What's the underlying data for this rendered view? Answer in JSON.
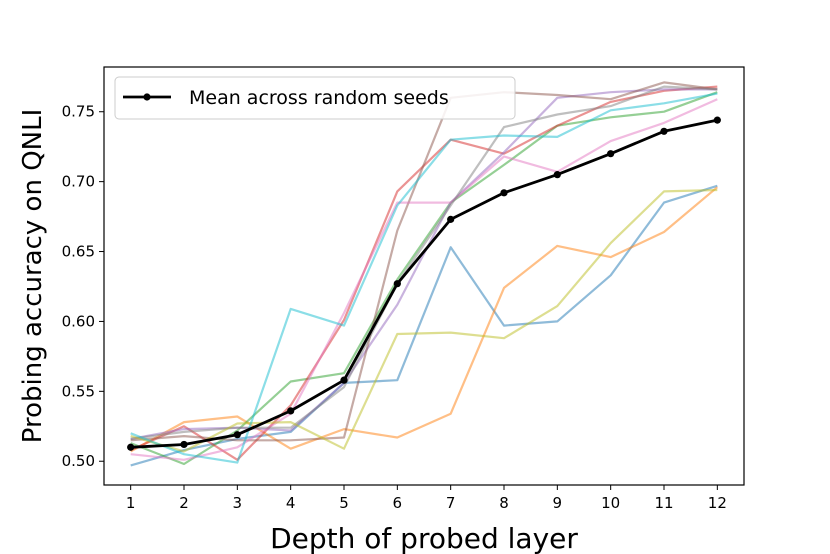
{
  "chart_data": {
    "type": "line",
    "xlabel": "Depth of probed layer",
    "ylabel": "Probing accuracy on QNLI",
    "xlim": [
      0.5,
      12.5
    ],
    "ylim": [
      0.483,
      0.782
    ],
    "x": [
      1,
      2,
      3,
      4,
      5,
      6,
      7,
      8,
      9,
      10,
      11,
      12
    ],
    "xticks": [
      "1",
      "2",
      "3",
      "4",
      "5",
      "6",
      "7",
      "8",
      "9",
      "10",
      "11",
      "12"
    ],
    "yticks": [
      "0.50",
      "0.55",
      "0.60",
      "0.65",
      "0.70",
      "0.75"
    ],
    "grid": false,
    "legend": {
      "position": "top-left",
      "entries": [
        "Mean across random seeds"
      ]
    },
    "mean_series": {
      "name": "Mean across random seeds",
      "color": "#000000",
      "values": [
        0.51,
        0.512,
        0.519,
        0.536,
        0.558,
        0.627,
        0.673,
        0.692,
        0.705,
        0.72,
        0.736,
        0.744
      ]
    },
    "seed_series": [
      {
        "color": "#1f77b4",
        "values": [
          0.497,
          0.508,
          0.516,
          0.521,
          0.556,
          0.558,
          0.653,
          0.597,
          0.6,
          0.633,
          0.685,
          0.697
        ]
      },
      {
        "color": "#ff7f0e",
        "values": [
          0.507,
          0.528,
          0.532,
          0.509,
          0.523,
          0.517,
          0.534,
          0.624,
          0.654,
          0.646,
          0.664,
          0.696
        ]
      },
      {
        "color": "#2ca02c",
        "values": [
          0.513,
          0.498,
          0.522,
          0.557,
          0.563,
          0.63,
          0.685,
          0.712,
          0.74,
          0.746,
          0.75,
          0.764
        ]
      },
      {
        "color": "#d62728",
        "values": [
          0.508,
          0.525,
          0.501,
          0.54,
          0.601,
          0.693,
          0.73,
          0.72,
          0.74,
          0.757,
          0.765,
          0.768
        ]
      },
      {
        "color": "#9467bd",
        "values": [
          0.516,
          0.523,
          0.524,
          0.522,
          0.556,
          0.612,
          0.685,
          0.721,
          0.76,
          0.764,
          0.766,
          0.766
        ]
      },
      {
        "color": "#8c564b",
        "values": [
          0.515,
          0.518,
          0.515,
          0.515,
          0.517,
          0.665,
          0.76,
          0.764,
          0.762,
          0.759,
          0.771,
          0.766
        ]
      },
      {
        "color": "#e377c2",
        "values": [
          0.505,
          0.501,
          0.51,
          0.534,
          0.606,
          0.685,
          0.685,
          0.718,
          0.707,
          0.729,
          0.742,
          0.759
        ]
      },
      {
        "color": "#7f7f7f",
        "values": [
          0.516,
          0.521,
          0.524,
          0.524,
          0.553,
          0.627,
          0.683,
          0.739,
          0.748,
          0.754,
          0.768,
          0.766
        ]
      },
      {
        "color": "#bcbd22",
        "values": [
          0.518,
          0.507,
          0.527,
          0.528,
          0.509,
          0.591,
          0.592,
          0.588,
          0.611,
          0.656,
          0.693,
          0.694
        ]
      },
      {
        "color": "#17becf",
        "values": [
          0.52,
          0.505,
          0.499,
          0.609,
          0.597,
          0.683,
          0.73,
          0.733,
          0.732,
          0.751,
          0.756,
          0.763
        ]
      }
    ]
  }
}
